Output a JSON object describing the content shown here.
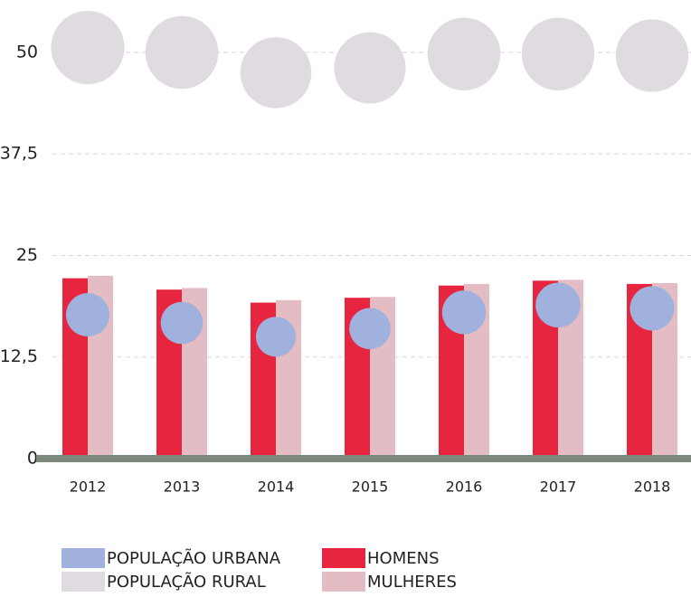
{
  "chart_data": {
    "type": "bar",
    "categories": [
      "2012",
      "2013",
      "2014",
      "2015",
      "2016",
      "2017",
      "2018"
    ],
    "series": [
      {
        "name": "POPULAÇÃO URBANA",
        "type": "bubble",
        "color": "#9fb1dc",
        "values": [
          17.7,
          16.7,
          15.0,
          16.0,
          18.0,
          18.9,
          18.5
        ]
      },
      {
        "name": "POPULAÇÃO RURAL",
        "type": "bubble",
        "color": "#dfdbe0",
        "values": [
          50.6,
          50.0,
          47.5,
          48.1,
          49.8,
          49.8,
          49.6
        ]
      },
      {
        "name": "HOMENS",
        "type": "bar",
        "color": "#e8253f",
        "values": [
          22.2,
          20.8,
          19.2,
          19.8,
          21.3,
          21.9,
          21.5
        ]
      },
      {
        "name": "MULHERES",
        "type": "bar",
        "color": "#e3bcc4",
        "values": [
          22.5,
          21.0,
          19.5,
          19.9,
          21.5,
          22.0,
          21.6
        ]
      }
    ],
    "ylim": [
      0,
      55
    ],
    "yticks": [
      0,
      {
        "value": 12.5,
        "label": "12,5"
      },
      25,
      {
        "value": 37.5,
        "label": "37,5"
      },
      50
    ],
    "grid": true
  }
}
